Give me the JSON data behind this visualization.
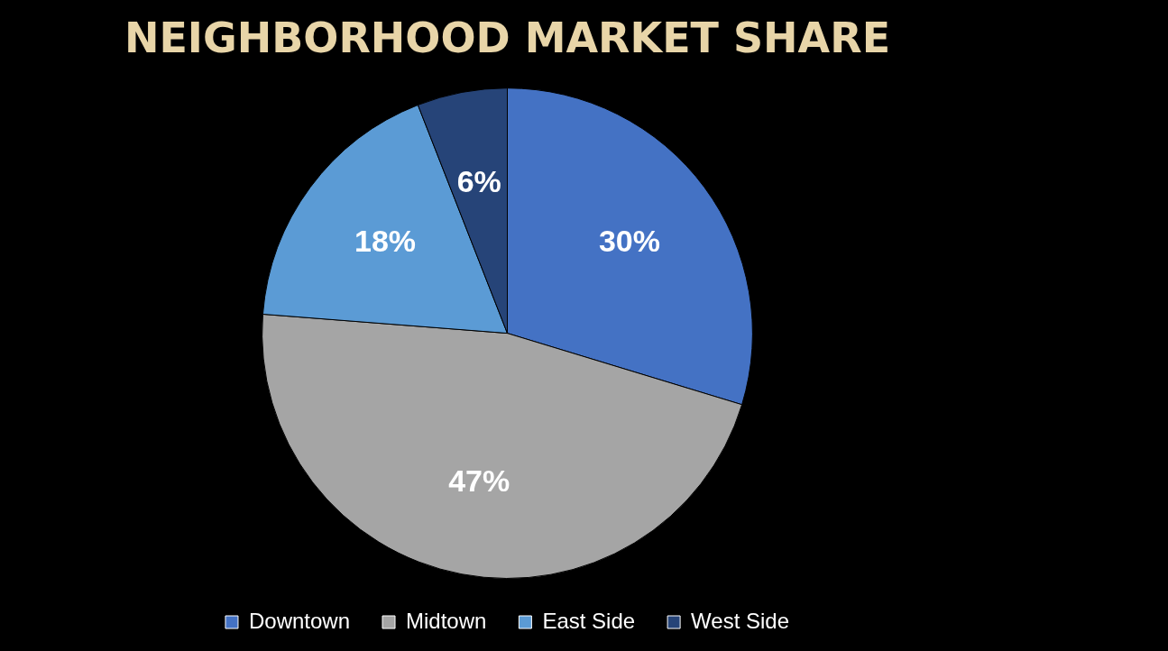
{
  "chart_data": {
    "type": "pie",
    "title": "NEIGHBORHOOD MARKET SHARE",
    "categories": [
      "Downtown",
      "Midtown",
      "East Side",
      "West Side"
    ],
    "values": [
      30,
      47,
      18,
      6
    ],
    "colors": [
      "#4472c4",
      "#a5a5a5",
      "#5b9bd5",
      "#264478"
    ],
    "value_labels": [
      "30%",
      "47%",
      "18%",
      "6%"
    ],
    "legend": "bottom"
  }
}
